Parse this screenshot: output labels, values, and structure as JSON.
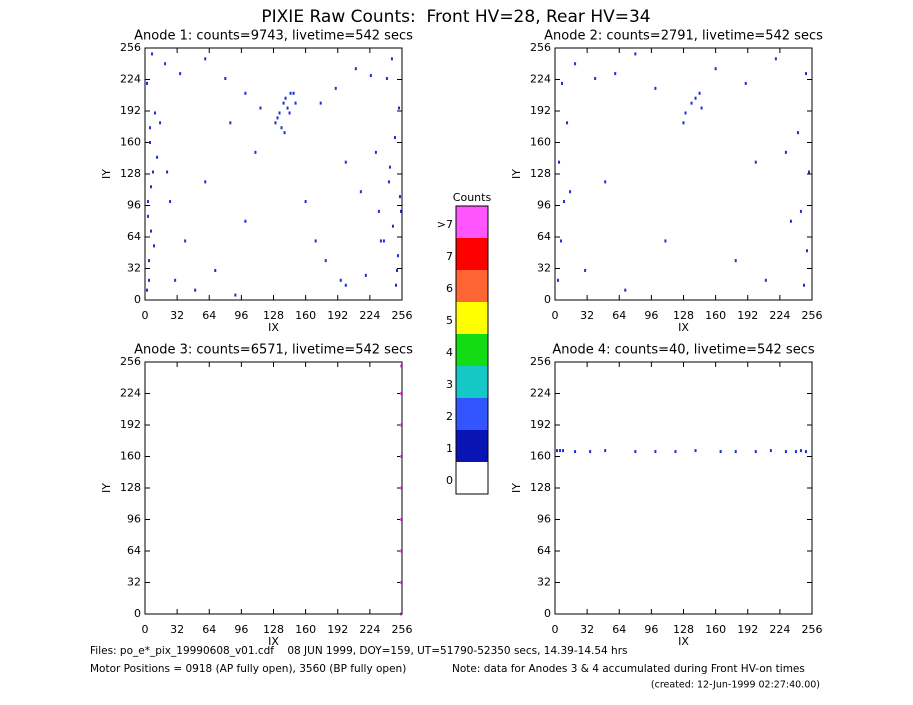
{
  "title": "PIXIE Raw Counts:  Front HV=28, Rear HV=34",
  "chart_data": [
    {
      "type": "scatter",
      "title": "Anode 1: counts=9743, livetime=542 secs",
      "xlabel": "IX",
      "ylabel": "IY",
      "xlim": [
        0,
        256
      ],
      "ylim": [
        0,
        256
      ],
      "xticks": [
        0,
        32,
        64,
        96,
        128,
        160,
        192,
        224,
        256
      ],
      "yticks": [
        0,
        32,
        64,
        96,
        128,
        160,
        192,
        224,
        256
      ],
      "color": "#1a2fd6",
      "x": [
        2,
        4,
        6,
        3,
        8,
        5,
        10,
        2,
        7,
        4,
        9,
        3,
        6,
        12,
        5,
        250,
        252,
        247,
        254,
        244,
        249,
        253,
        241,
        246,
        251,
        238,
        255,
        243,
        20,
        35,
        60,
        80,
        100,
        115,
        175,
        190,
        210,
        225,
        30,
        50,
        70,
        90,
        200,
        220,
        15,
        25,
        230,
        235,
        130,
        134,
        138,
        140,
        136,
        142,
        145,
        132,
        139,
        148,
        150,
        144,
        60,
        100,
        160,
        200,
        40,
        215,
        180,
        110,
        85,
        170,
        195,
        22,
        233
      ],
      "y": [
        10,
        40,
        70,
        100,
        130,
        160,
        190,
        220,
        250,
        20,
        55,
        85,
        115,
        145,
        175,
        15,
        45,
        75,
        105,
        135,
        165,
        195,
        225,
        245,
        30,
        60,
        90,
        120,
        240,
        230,
        245,
        225,
        210,
        195,
        200,
        215,
        235,
        228,
        20,
        10,
        30,
        5,
        15,
        25,
        180,
        100,
        150,
        60,
        180,
        190,
        200,
        205,
        175,
        195,
        210,
        185,
        170,
        210,
        200,
        190,
        120,
        80,
        100,
        140,
        60,
        110,
        40,
        150,
        180,
        60,
        20,
        130,
        90
      ]
    },
    {
      "type": "scatter",
      "title": "Anode 2: counts=2791, livetime=542 secs",
      "xlabel": "IX",
      "ylabel": "IY",
      "xlim": [
        0,
        256
      ],
      "ylim": [
        0,
        256
      ],
      "xticks": [
        0,
        32,
        64,
        96,
        128,
        160,
        192,
        224,
        256
      ],
      "yticks": [
        0,
        32,
        64,
        96,
        128,
        160,
        192,
        224,
        256
      ],
      "color": "#1a2fd6",
      "x": [
        3,
        6,
        9,
        4,
        12,
        7,
        248,
        251,
        245,
        253,
        242,
        250,
        136,
        140,
        144,
        130,
        128,
        146,
        20,
        40,
        60,
        80,
        100,
        160,
        190,
        220,
        30,
        70,
        110,
        180,
        210,
        235,
        15,
        230,
        50,
        200
      ],
      "y": [
        20,
        60,
        100,
        140,
        180,
        220,
        15,
        50,
        90,
        130,
        170,
        230,
        200,
        205,
        210,
        190,
        180,
        195,
        240,
        225,
        230,
        250,
        215,
        235,
        220,
        245,
        30,
        10,
        60,
        40,
        20,
        80,
        110,
        150,
        120,
        140
      ]
    },
    {
      "type": "scatter",
      "title": "Anode 3: counts=6571, livetime=542 secs",
      "xlabel": "IX",
      "ylabel": "IY",
      "xlim": [
        0,
        256
      ],
      "ylim": [
        0,
        256
      ],
      "xticks": [
        0,
        32,
        64,
        96,
        128,
        160,
        192,
        224,
        256
      ],
      "yticks": [
        0,
        32,
        64,
        96,
        128,
        160,
        192,
        224,
        256
      ],
      "color": "#ff55ff",
      "x": [
        255,
        255,
        255,
        255,
        255,
        255,
        255,
        255,
        255
      ],
      "y": [
        0,
        32,
        64,
        96,
        128,
        160,
        192,
        224,
        252
      ]
    },
    {
      "type": "scatter",
      "title": "Anode 4: counts=40, livetime=542 secs",
      "xlabel": "IX",
      "ylabel": "IY",
      "xlim": [
        0,
        256
      ],
      "ylim": [
        0,
        256
      ],
      "xticks": [
        0,
        32,
        64,
        96,
        128,
        160,
        192,
        224,
        256
      ],
      "yticks": [
        0,
        32,
        64,
        96,
        128,
        160,
        192,
        224,
        256
      ],
      "color": "#1a2fd6",
      "x": [
        2,
        5,
        8,
        20,
        35,
        50,
        80,
        100,
        120,
        140,
        165,
        180,
        200,
        215,
        230,
        240,
        245,
        250
      ],
      "y": [
        166,
        166,
        166,
        165,
        165,
        166,
        165,
        165,
        165,
        166,
        165,
        165,
        165,
        166,
        165,
        165,
        166,
        165
      ]
    },
    {
      "type": "colorbar",
      "title": "Counts",
      "categories": [
        "0",
        "1",
        "2",
        "3",
        "4",
        "5",
        "6",
        "7",
        ">7"
      ],
      "colors": [
        "#ffffff",
        "#0a14b4",
        "#3355ff",
        "#14c8c8",
        "#14dc14",
        "#ffff00",
        "#ff6633",
        "#ff0000",
        "#ff55ff"
      ]
    }
  ],
  "footer": {
    "files": "Files: po_e*_pix_19990608_v01.cdf    08 JUN 1999, DOY=159, UT=51790-52350 secs, 14.39-14.54 hrs",
    "motor": "Motor Positions = 0918 (AP fully open), 3560 (BP fully open)",
    "note": "Note: data for Anodes 3 & 4 accumulated during Front HV-on times",
    "created": "(created: 12-Jun-1999 02:27:40.00)"
  }
}
